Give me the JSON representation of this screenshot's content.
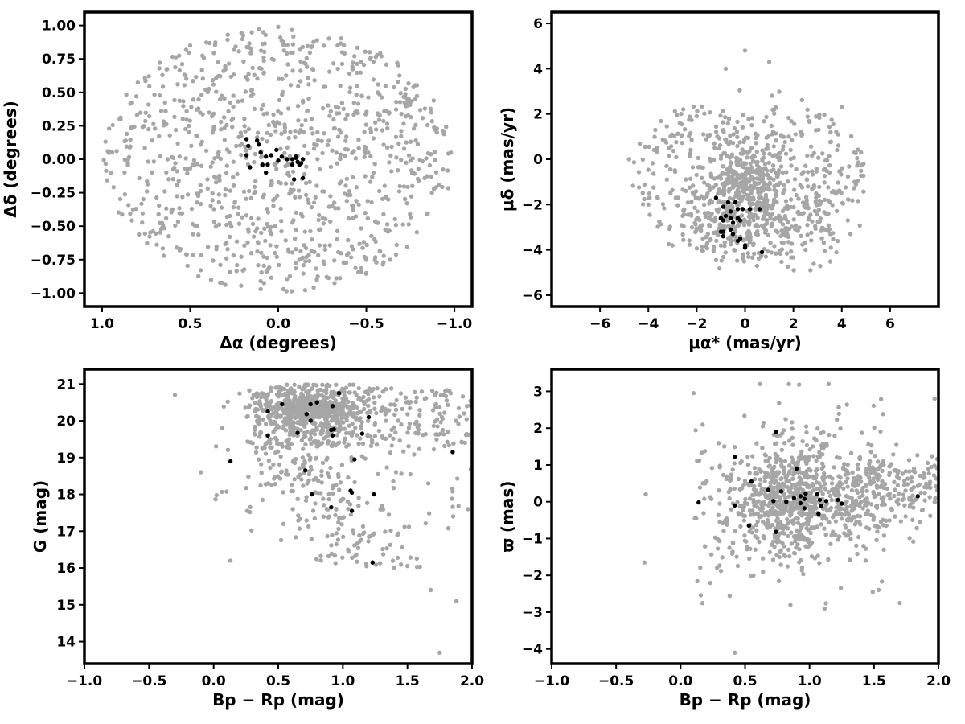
{
  "colors": {
    "field": "#a6a6a6",
    "members": "#000000"
  },
  "chart_data": [
    {
      "id": "sky",
      "type": "scatter",
      "xlabel": "Δα (degrees)",
      "ylabel": "Δδ (degrees)",
      "xlim": [
        1.1,
        -1.1
      ],
      "ylim": [
        -1.1,
        1.1
      ],
      "xticks": [
        {
          "value": 1.0,
          "label": "1.0"
        },
        {
          "value": 0.5,
          "label": "0.5"
        },
        {
          "value": 0.0,
          "label": "0.0"
        },
        {
          "value": -0.5,
          "label": "−0.5"
        },
        {
          "value": -1.0,
          "label": "−1.0"
        }
      ],
      "yticks": [
        {
          "value": 1.0,
          "label": "1.00"
        },
        {
          "value": 0.75,
          "label": "0.75"
        },
        {
          "value": 0.5,
          "label": "0.50"
        },
        {
          "value": 0.25,
          "label": "0.25"
        },
        {
          "value": 0.0,
          "label": "0.00"
        },
        {
          "value": -0.25,
          "label": "−0.25"
        },
        {
          "value": -0.5,
          "label": "−0.50"
        },
        {
          "value": -0.75,
          "label": "−0.75"
        },
        {
          "value": -1.0,
          "label": "−1.00"
        }
      ],
      "field_points": {
        "note_shape": "uniform disk, radius ~1 deg",
        "count": 1000,
        "points_sample": [
          [
            0.9,
            0.3
          ],
          [
            -0.9,
            0.2
          ],
          [
            0.5,
            0.85
          ],
          [
            -0.5,
            -0.85
          ],
          [
            0.0,
            0.99
          ],
          [
            0.1,
            -0.97
          ],
          [
            -0.98,
            0.05
          ],
          [
            0.95,
            -0.1
          ]
        ]
      },
      "member_points": [
        [
          0.18,
          0.15
        ],
        [
          0.17,
          0.1
        ],
        [
          0.12,
          0.14
        ],
        [
          0.11,
          0.11
        ],
        [
          0.1,
          0.05
        ],
        [
          0.07,
          0.02
        ],
        [
          0.04,
          0.03
        ],
        [
          0.01,
          0.07
        ],
        [
          0.0,
          -0.01
        ],
        [
          -0.02,
          0.02
        ],
        [
          0.06,
          -0.04
        ],
        [
          0.09,
          -0.04
        ],
        [
          0.07,
          -0.1
        ],
        [
          0.16,
          -0.06
        ],
        [
          -0.05,
          0.0
        ],
        [
          -0.08,
          0.0
        ],
        [
          -0.1,
          0.02
        ],
        [
          -0.11,
          -0.02
        ],
        [
          -0.12,
          -0.04
        ],
        [
          -0.13,
          -0.03
        ],
        [
          -0.08,
          -0.04
        ],
        [
          -0.1,
          0.01
        ],
        [
          -0.14,
          -0.14
        ],
        [
          -0.09,
          -0.15
        ],
        [
          0.18,
          0.03
        ],
        [
          -0.14,
          0.0
        ]
      ]
    },
    {
      "id": "pm",
      "type": "scatter",
      "xlabel": "μα* (mas/yr)",
      "ylabel": "μδ (mas/yr)",
      "xlim": [
        -8,
        8
      ],
      "ylim": [
        -6.5,
        6.5
      ],
      "xticks": [
        {
          "value": -6,
          "label": "−6"
        },
        {
          "value": -4,
          "label": "−4"
        },
        {
          "value": -2,
          "label": "−2"
        },
        {
          "value": 0,
          "label": "0"
        },
        {
          "value": 2,
          "label": "2"
        },
        {
          "value": 4,
          "label": "4"
        },
        {
          "value": 6,
          "label": "6"
        }
      ],
      "yticks": [
        {
          "value": 6,
          "label": "6"
        },
        {
          "value": 4,
          "label": "4"
        },
        {
          "value": 2,
          "label": "2"
        },
        {
          "value": 0,
          "label": "0"
        },
        {
          "value": -2,
          "label": "−2"
        },
        {
          "value": -4,
          "label": "−4"
        },
        {
          "value": -6,
          "label": "−6"
        }
      ],
      "field_points": {
        "note_shape": "ellipse centred near (0, -1.5), dense clump near (0,-0.7) and (-1,-2.5)",
        "count": 1000,
        "points_sample": [
          [
            -4.8,
            0.0
          ],
          [
            4.8,
            0.3
          ],
          [
            0.0,
            4.8
          ],
          [
            -0.8,
            4.0
          ],
          [
            1.0,
            4.3
          ],
          [
            4.0,
            2.3
          ],
          [
            -3.0,
            -3.8
          ],
          [
            2.5,
            -4.0
          ]
        ]
      },
      "member_points": [
        [
          -1.2,
          -1.7
        ],
        [
          -0.9,
          -2.1
        ],
        [
          -0.7,
          -1.9
        ],
        [
          -0.4,
          -1.9
        ],
        [
          -0.3,
          -2.2
        ],
        [
          -0.6,
          -2.3
        ],
        [
          -0.8,
          -2.5
        ],
        [
          -1.0,
          -2.6
        ],
        [
          -0.9,
          -2.7
        ],
        [
          -0.6,
          -2.6
        ],
        [
          -0.3,
          -2.6
        ],
        [
          -0.2,
          -2.7
        ],
        [
          -0.1,
          -2.2
        ],
        [
          0.2,
          -2.2
        ],
        [
          0.6,
          -2.2
        ],
        [
          -0.5,
          -2.8
        ],
        [
          -0.9,
          -3.2
        ],
        [
          -0.9,
          -3.4
        ],
        [
          -0.6,
          -3.1
        ],
        [
          -0.5,
          -3.3
        ],
        [
          -0.3,
          -3.6
        ],
        [
          0.0,
          -3.8
        ],
        [
          0.0,
          -3.9
        ],
        [
          0.7,
          -4.1
        ],
        [
          -0.2,
          -3.5
        ],
        [
          -1.0,
          -3.2
        ]
      ]
    },
    {
      "id": "cmd",
      "type": "scatter",
      "xlabel": "Bp − Rp (mag)",
      "ylabel": "G (mag)",
      "xlim": [
        -1.0,
        2.0
      ],
      "ylim": [
        13.4,
        21.4
      ],
      "xticks": [
        {
          "value": -1.0,
          "label": "−1.0"
        },
        {
          "value": -0.5,
          "label": "−0.5"
        },
        {
          "value": 0.0,
          "label": "0.0"
        },
        {
          "value": 0.5,
          "label": "0.5"
        },
        {
          "value": 1.0,
          "label": "1.0"
        },
        {
          "value": 1.5,
          "label": "1.5"
        },
        {
          "value": 2.0,
          "label": "2.0"
        }
      ],
      "yticks": [
        {
          "value": 21,
          "label": "21"
        },
        {
          "value": 20,
          "label": "20"
        },
        {
          "value": 19,
          "label": "19"
        },
        {
          "value": 18,
          "label": "18"
        },
        {
          "value": 17,
          "label": "17"
        },
        {
          "value": 16,
          "label": "16"
        },
        {
          "value": 15,
          "label": "15"
        },
        {
          "value": 14,
          "label": "14"
        }
      ],
      "field_points": {
        "note_shape": "faint dense clump at G~20-21, Bp-Rp~0.4-1.2, sequence down to G~15.5",
        "count": 1100,
        "points_sample": [
          [
            -0.3,
            20.7
          ],
          [
            -0.1,
            18.6
          ],
          [
            0.13,
            16.2
          ],
          [
            1.75,
            13.7
          ],
          [
            1.88,
            15.1
          ],
          [
            1.68,
            15.4
          ],
          [
            0.26,
            17.55
          ],
          [
            1.96,
            20.4
          ]
        ]
      },
      "member_points": [
        [
          0.97,
          20.75
        ],
        [
          0.8,
          20.5
        ],
        [
          0.75,
          20.45
        ],
        [
          0.53,
          20.45
        ],
        [
          0.92,
          20.4
        ],
        [
          0.42,
          20.25
        ],
        [
          0.72,
          20.18
        ],
        [
          1.2,
          20.1
        ],
        [
          0.75,
          20.0
        ],
        [
          0.93,
          19.77
        ],
        [
          0.91,
          19.75
        ],
        [
          0.65,
          19.67
        ],
        [
          1.15,
          19.65
        ],
        [
          0.42,
          19.6
        ],
        [
          0.92,
          19.6
        ],
        [
          1.09,
          18.95
        ],
        [
          0.13,
          18.9
        ],
        [
          0.71,
          18.65
        ],
        [
          1.85,
          19.15
        ],
        [
          1.06,
          18.1
        ],
        [
          1.07,
          18.05
        ],
        [
          0.76,
          18.0
        ],
        [
          1.24,
          18.0
        ],
        [
          0.91,
          17.65
        ],
        [
          1.07,
          17.55
        ],
        [
          1.23,
          16.15
        ]
      ]
    },
    {
      "id": "parallax",
      "type": "scatter",
      "xlabel": "Bp − Rp (mag)",
      "ylabel": "ϖ (mas)",
      "xlim": [
        -1.0,
        2.0
      ],
      "ylim": [
        -4.4,
        3.6
      ],
      "xticks": [
        {
          "value": -1.0,
          "label": "−1.0"
        },
        {
          "value": -0.5,
          "label": "−0.5"
        },
        {
          "value": 0.0,
          "label": "0.0"
        },
        {
          "value": 0.5,
          "label": "0.5"
        },
        {
          "value": 1.0,
          "label": "1.0"
        },
        {
          "value": 1.5,
          "label": "1.5"
        },
        {
          "value": 2.0,
          "label": "2.0"
        }
      ],
      "yticks": [
        {
          "value": 3,
          "label": "3"
        },
        {
          "value": 2,
          "label": "2"
        },
        {
          "value": 1,
          "label": "1"
        },
        {
          "value": 0,
          "label": "0"
        },
        {
          "value": -1,
          "label": "−1"
        },
        {
          "value": -2,
          "label": "−2"
        },
        {
          "value": -3,
          "label": "−3"
        },
        {
          "value": -4,
          "label": "−4"
        }
      ],
      "field_points": {
        "note_shape": "spread around 0 mas, dense at Bp-Rp 0.5-1.2, tail to 2.0",
        "count": 1100,
        "points_sample": [
          [
            0.42,
            -4.1
          ],
          [
            0.84,
            3.2
          ],
          [
            -0.28,
            -1.65
          ],
          [
            -0.27,
            0.2
          ],
          [
            1.97,
            2.8
          ],
          [
            1.7,
            -2.75
          ],
          [
            0.1,
            2.95
          ],
          [
            1.57,
            2.38
          ]
        ]
      },
      "member_points": [
        [
          0.74,
          1.9
        ],
        [
          0.42,
          1.22
        ],
        [
          0.9,
          0.9
        ],
        [
          0.55,
          0.55
        ],
        [
          0.68,
          0.32
        ],
        [
          0.78,
          0.28
        ],
        [
          0.97,
          0.22
        ],
        [
          0.93,
          0.15
        ],
        [
          1.06,
          0.2
        ],
        [
          0.96,
          0.08
        ],
        [
          1.08,
          0.05
        ],
        [
          1.13,
          0.02
        ],
        [
          1.22,
          0.05
        ],
        [
          1.84,
          0.15
        ],
        [
          0.14,
          -0.02
        ],
        [
          0.82,
          0.0
        ],
        [
          0.93,
          -0.04
        ],
        [
          1.09,
          -0.12
        ],
        [
          1.25,
          -0.05
        ],
        [
          0.42,
          -0.1
        ],
        [
          0.72,
          0.02
        ],
        [
          0.96,
          -0.18
        ],
        [
          1.07,
          -0.33
        ],
        [
          0.53,
          -0.65
        ],
        [
          0.74,
          -0.82
        ],
        [
          0.88,
          0.1
        ]
      ]
    }
  ]
}
